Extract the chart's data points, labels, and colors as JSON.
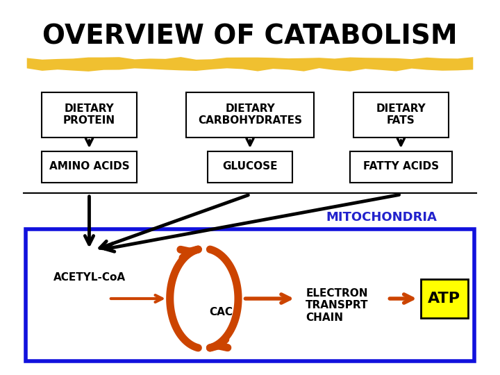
{
  "title": "OVERVIEW OF CATABOLISM",
  "background": "#ffffff",
  "highlight_color": "#F0C030",
  "blue_border": "#1111DD",
  "orange_color": "#CC4400",
  "black": "#000000",
  "mitochondria_label": "MITOCHONDRIA",
  "mitochondria_color": "#2222CC",
  "acetyl_label": "ACETYL-CoA",
  "cac_label": "CAC",
  "electron_label": "ELECTRON\nTRANSPRT\nCHAIN",
  "atp_label": "ATP",
  "atp_bg": "#FFFF00",
  "figw": 7.2,
  "figh": 5.4,
  "dpi": 100
}
